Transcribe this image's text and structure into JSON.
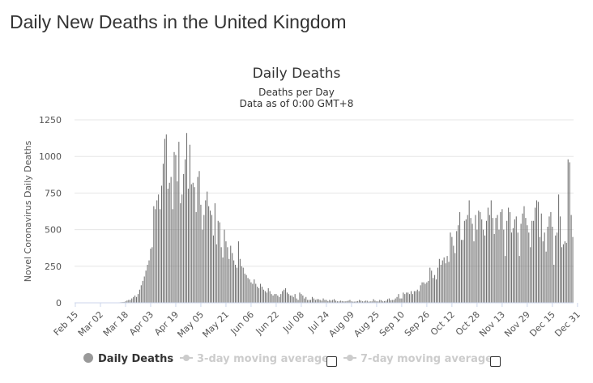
{
  "page": {
    "title": "Daily New Deaths in the United Kingdom"
  },
  "chart_data": {
    "type": "bar",
    "title": "Daily Deaths",
    "subtitle_line1": "Deaths per Day",
    "subtitle_line2": "Data as of 0:00 GMT+8",
    "xlabel": "",
    "ylabel": "Novel Coronavirus Daily Deaths",
    "ylim": [
      0,
      1250
    ],
    "y_ticks": [
      "0",
      "250",
      "500",
      "750",
      "1000",
      "1250"
    ],
    "x_ticks": [
      "Feb 15",
      "Mar 02",
      "Mar 18",
      "Apr 03",
      "Apr 19",
      "May 05",
      "May 21",
      "Jun 06",
      "Jun 22",
      "Jul 08",
      "Jul 24",
      "Aug 09",
      "Aug 25",
      "Sep 10",
      "Sep 26",
      "Oct 12",
      "Oct 28",
      "Nov 13",
      "Nov 29",
      "Dec 15",
      "Dec 31"
    ],
    "grid": true,
    "start_date": "2020-02-15",
    "values": [
      0,
      0,
      0,
      0,
      0,
      0,
      0,
      0,
      0,
      0,
      0,
      0,
      0,
      0,
      0,
      0,
      0,
      0,
      0,
      0,
      0,
      0,
      1,
      1,
      1,
      1,
      2,
      2,
      3,
      4,
      5,
      6,
      10,
      16,
      20,
      20,
      30,
      40,
      50,
      40,
      60,
      90,
      120,
      150,
      180,
      220,
      260,
      290,
      370,
      380,
      660,
      640,
      700,
      740,
      640,
      800,
      950,
      1120,
      1150,
      780,
      820,
      860,
      640,
      1030,
      1010,
      830,
      1100,
      680,
      740,
      880,
      980,
      1160,
      780,
      1080,
      810,
      820,
      790,
      620,
      860,
      900,
      670,
      500,
      600,
      700,
      760,
      660,
      630,
      600,
      460,
      680,
      400,
      560,
      550,
      380,
      310,
      500,
      420,
      380,
      300,
      390,
      340,
      290,
      260,
      240,
      420,
      300,
      250,
      240,
      200,
      190,
      170,
      160,
      140,
      130,
      160,
      130,
      110,
      100,
      130,
      110,
      90,
      80,
      70,
      100,
      80,
      60,
      50,
      60,
      60,
      50,
      40,
      60,
      80,
      90,
      100,
      70,
      60,
      50,
      50,
      40,
      60,
      30,
      20,
      70,
      60,
      50,
      30,
      40,
      20,
      20,
      20,
      40,
      30,
      20,
      25,
      25,
      20,
      15,
      30,
      20,
      20,
      12,
      20,
      15,
      20,
      25,
      15,
      10,
      10,
      15,
      12,
      10,
      10,
      12,
      15,
      20,
      10,
      8,
      8,
      10,
      12,
      20,
      15,
      10,
      10,
      15,
      14,
      8,
      10,
      10,
      25,
      15,
      10,
      10,
      20,
      18,
      10,
      12,
      14,
      25,
      30,
      18,
      20,
      20,
      30,
      40,
      60,
      30,
      30,
      70,
      60,
      70,
      70,
      60,
      80,
      60,
      80,
      80,
      90,
      80,
      120,
      140,
      140,
      130,
      140,
      150,
      240,
      220,
      170,
      190,
      160,
      240,
      300,
      260,
      290,
      310,
      270,
      320,
      280,
      480,
      450,
      390,
      340,
      490,
      530,
      620,
      430,
      430,
      560,
      570,
      600,
      700,
      580,
      540,
      420,
      600,
      500,
      630,
      620,
      570,
      500,
      460,
      560,
      650,
      600,
      700,
      580,
      470,
      580,
      600,
      500,
      620,
      640,
      500,
      320,
      560,
      650,
      620,
      480,
      510,
      570,
      590,
      480,
      320,
      540,
      610,
      660,
      580,
      530,
      480,
      380,
      560,
      560,
      650,
      700,
      690,
      450,
      610,
      420,
      480,
      350,
      520,
      590,
      620,
      520,
      260,
      460,
      480,
      740,
      590,
      380,
      400,
      420,
      410,
      980,
      960,
      600,
      450
    ]
  },
  "legend": {
    "daily": "Daily Deaths",
    "avg3": "3-day moving average",
    "avg7": "7-day moving average"
  },
  "colors": {
    "bar": "#707070",
    "grid": "#e6e6e6",
    "legend_inactive": "#cccccc",
    "legend_marker": "#999999"
  }
}
